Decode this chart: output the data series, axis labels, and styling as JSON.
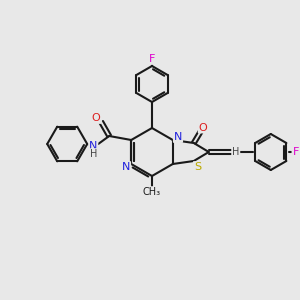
{
  "background_color": "#e8e8e8",
  "bond_color": "#1a1a1a",
  "atom_colors": {
    "N": "#2020dd",
    "O": "#dd2020",
    "S": "#bbaa00",
    "F": "#dd00cc",
    "H": "#444444",
    "C": "#1a1a1a"
  },
  "figsize": [
    3.0,
    3.0
  ],
  "dpi": 100,
  "lw": 1.5,
  "fs": 8.0
}
